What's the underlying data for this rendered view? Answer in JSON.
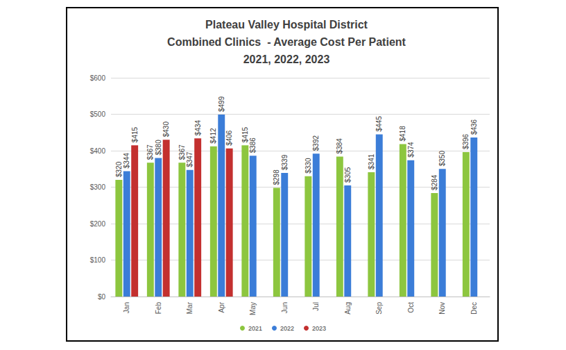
{
  "chart_data": {
    "type": "bar",
    "title": "Plateau Valley Hospital District\nCombined Clinics  - Average Cost Per Patient\n2021, 2022, 2023",
    "categories": [
      "Jan",
      "Feb",
      "Mar",
      "Apr",
      "May",
      "Jun",
      "Jul",
      "Aug",
      "Sep",
      "Oct",
      "Nov",
      "Dec"
    ],
    "series": [
      {
        "name": "2021",
        "color": "#8dc63f",
        "values": [
          320,
          367,
          367,
          412,
          415,
          298,
          330,
          384,
          341,
          418,
          284,
          396
        ],
        "value_labels": [
          "$320",
          "$367",
          "$367",
          "$412",
          "$415",
          "$298",
          "$330",
          "$384",
          "$341",
          "$418",
          "$284",
          "$396"
        ]
      },
      {
        "name": "2022",
        "color": "#3b7dd8",
        "values": [
          344,
          380,
          347,
          499,
          386,
          339,
          392,
          305,
          445,
          374,
          350,
          436
        ],
        "value_labels": [
          "$344",
          "$380",
          "$347",
          "$499",
          "$386",
          "$339",
          "$392",
          "$305",
          "$445",
          "$374",
          "$350",
          "$436"
        ]
      },
      {
        "name": "2023",
        "color": "#c3302f",
        "values": [
          415,
          430,
          434,
          406,
          null,
          null,
          null,
          null,
          null,
          null,
          null,
          null
        ],
        "value_labels": [
          "$415",
          "$430",
          "$434",
          "$406",
          null,
          null,
          null,
          null,
          null,
          null,
          null,
          null
        ]
      }
    ],
    "ylim": [
      0,
      600
    ],
    "yticks": [
      {
        "value": 0,
        "label": "$0"
      },
      {
        "value": 100,
        "label": "$100"
      },
      {
        "value": 200,
        "label": "$200"
      },
      {
        "value": 300,
        "label": "$300"
      },
      {
        "value": 400,
        "label": "$400"
      },
      {
        "value": 500,
        "label": "$500"
      },
      {
        "value": 600,
        "label": "$600"
      }
    ],
    "grid": true,
    "legend": "bottom",
    "data_labels": true
  }
}
